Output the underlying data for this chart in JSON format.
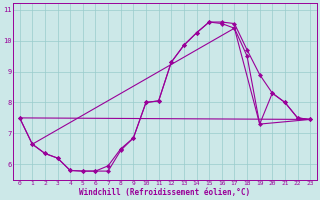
{
  "xlabel": "Windchill (Refroidissement éolien,°C)",
  "background_color": "#cce8e8",
  "line_color": "#990099",
  "grid_color": "#99cccc",
  "xlim": [
    -0.5,
    23.5
  ],
  "ylim": [
    5.5,
    11.2
  ],
  "xticks": [
    0,
    1,
    2,
    3,
    4,
    5,
    6,
    7,
    8,
    9,
    10,
    11,
    12,
    13,
    14,
    15,
    16,
    17,
    18,
    19,
    20,
    21,
    22,
    23
  ],
  "yticks": [
    6,
    7,
    8,
    9,
    10,
    11
  ],
  "series1_x": [
    0,
    1,
    2,
    3,
    4,
    5,
    6,
    7,
    8,
    9,
    10,
    11,
    12,
    13,
    14,
    15,
    16,
    17,
    18,
    19,
    20,
    21,
    22,
    23
  ],
  "series1_y": [
    7.5,
    6.65,
    6.35,
    6.2,
    5.8,
    5.78,
    5.78,
    5.95,
    6.5,
    6.85,
    8.0,
    8.05,
    9.3,
    9.85,
    10.25,
    10.6,
    10.6,
    10.55,
    9.7,
    8.9,
    8.3,
    8.0,
    7.5,
    7.45
  ],
  "series2_x": [
    0,
    1,
    2,
    3,
    4,
    5,
    6,
    7,
    8,
    9,
    10,
    11,
    12,
    13,
    14,
    15,
    16,
    17,
    18,
    19,
    20,
    21,
    22,
    23
  ],
  "series2_y": [
    7.5,
    6.65,
    6.35,
    6.2,
    5.8,
    5.78,
    5.78,
    5.78,
    6.45,
    6.85,
    8.0,
    8.05,
    9.3,
    9.85,
    10.25,
    10.6,
    10.55,
    10.4,
    9.5,
    7.3,
    8.3,
    8.0,
    7.5,
    7.45
  ],
  "series3_x": [
    0,
    23
  ],
  "series3_y": [
    7.5,
    7.45
  ],
  "series4_x": [
    1,
    17,
    19,
    23
  ],
  "series4_y": [
    6.65,
    10.4,
    7.3,
    7.45
  ]
}
